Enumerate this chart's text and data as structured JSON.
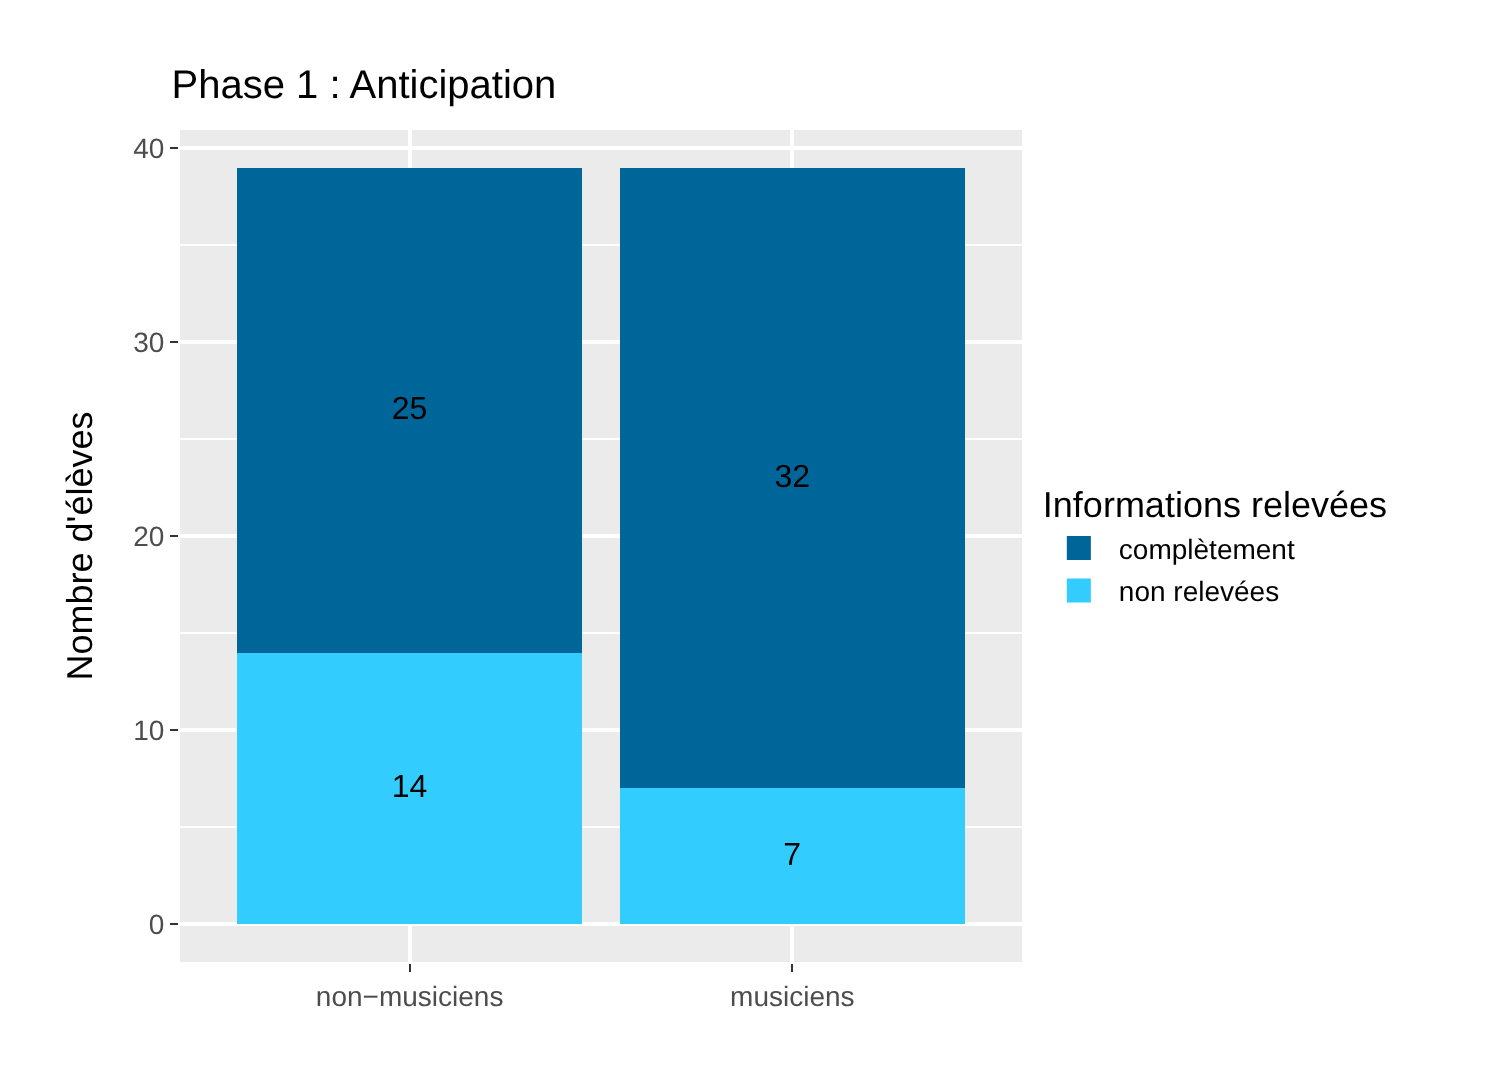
{
  "chart_data": {
    "type": "bar",
    "title": "Phase 1 : Anticipation",
    "ylabel": "Nombre d'élèves",
    "legend_title": "Informations relevées",
    "categories": [
      "non−musiciens",
      "musiciens"
    ],
    "series": [
      {
        "name": "non relevées",
        "color": "#33ccff",
        "values": [
          14,
          7
        ]
      },
      {
        "name": "complètement",
        "color": "#006699",
        "values": [
          25,
          32
        ]
      }
    ],
    "stacked": true,
    "ylim": [
      -1.95,
      40.95
    ],
    "yticks": [
      0,
      10,
      20,
      30,
      40
    ],
    "grid": true,
    "legend": "right",
    "data_labels": true
  }
}
